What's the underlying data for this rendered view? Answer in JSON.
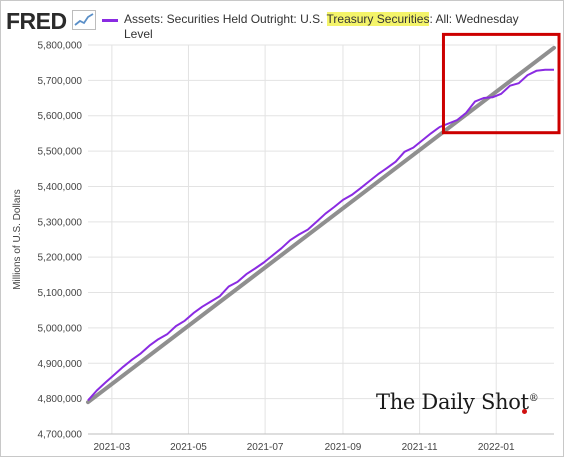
{
  "header": {
    "logo": "FRED",
    "legend_prefix": "Assets: Securities Held Outright: U.S. ",
    "legend_highlight": "Treasury Securities",
    "legend_suffix": ": All: Wednesday Level"
  },
  "watermark": {
    "text": "The Daily Shot",
    "mark": "®"
  },
  "colors": {
    "series": "#8a2be2",
    "trend": "#8f8f8f",
    "highlight_box": "#cc0000",
    "highlight_text_bg": "#f4f46a"
  },
  "chart_data": {
    "type": "line",
    "ylabel": "Millions of U.S. Dollars",
    "ylim": [
      4700000,
      5800000
    ],
    "yticks": [
      4700000,
      4800000,
      4900000,
      5000000,
      5100000,
      5200000,
      5300000,
      5400000,
      5500000,
      5600000,
      5700000,
      5800000
    ],
    "ytick_labels": [
      "4,700,000",
      "4,800,000",
      "4,900,000",
      "5,000,000",
      "5,100,000",
      "5,200,000",
      "5,300,000",
      "5,400,000",
      "5,500,000",
      "5,600,000",
      "5,700,000",
      "5,800,000"
    ],
    "xlim": [
      "2021-02-10",
      "2022-02-16"
    ],
    "xticks": [
      "2021-03-01",
      "2021-05-01",
      "2021-07-01",
      "2021-09-01",
      "2021-11-01",
      "2022-01-01"
    ],
    "xtick_labels": [
      "2021-03",
      "2021-05",
      "2021-07",
      "2021-09",
      "2021-11",
      "2022-01"
    ],
    "grid": true,
    "series": [
      {
        "x": [
          "2021-02-10",
          "2021-02-17",
          "2021-02-24",
          "2021-03-03",
          "2021-03-10",
          "2021-03-17",
          "2021-03-24",
          "2021-03-31",
          "2021-04-07",
          "2021-04-14",
          "2021-04-21",
          "2021-04-28",
          "2021-05-05",
          "2021-05-12",
          "2021-05-19",
          "2021-05-26",
          "2021-06-02",
          "2021-06-09",
          "2021-06-16",
          "2021-06-23",
          "2021-06-30",
          "2021-07-07",
          "2021-07-14",
          "2021-07-21",
          "2021-07-28",
          "2021-08-04",
          "2021-08-11",
          "2021-08-18",
          "2021-08-25",
          "2021-09-01",
          "2021-09-08",
          "2021-09-15",
          "2021-09-22",
          "2021-09-29",
          "2021-10-06",
          "2021-10-13",
          "2021-10-20",
          "2021-10-27",
          "2021-11-03",
          "2021-11-10",
          "2021-11-17",
          "2021-11-24",
          "2021-12-01",
          "2021-12-08",
          "2021-12-15",
          "2021-12-22",
          "2021-12-29",
          "2022-01-05",
          "2022-01-12",
          "2022-01-19",
          "2022-01-26",
          "2022-02-02",
          "2022-02-09",
          "2022-02-16"
        ],
        "values": [
          4795000,
          4823000,
          4846000,
          4868000,
          4890000,
          4910000,
          4928000,
          4950000,
          4968000,
          4982000,
          5005000,
          5020000,
          5042000,
          5060000,
          5075000,
          5090000,
          5117000,
          5130000,
          5152000,
          5168000,
          5185000,
          5205000,
          5225000,
          5248000,
          5264000,
          5278000,
          5300000,
          5323000,
          5342000,
          5362000,
          5376000,
          5395000,
          5415000,
          5435000,
          5452000,
          5470000,
          5498000,
          5510000,
          5530000,
          5550000,
          5568000,
          5578000,
          5588000,
          5608000,
          5640000,
          5650000,
          5652000,
          5662000,
          5685000,
          5692000,
          5715000,
          5727000,
          5730000,
          5730000
        ]
      }
    ],
    "trend_line": {
      "x": [
        "2021-02-10",
        "2022-02-16"
      ],
      "values": [
        4790000,
        5792000
      ]
    },
    "annotation": {
      "type": "rectangle",
      "x": [
        "2021-11-20",
        "2022-02-20"
      ],
      "y": [
        5552000,
        5830000
      ]
    }
  }
}
